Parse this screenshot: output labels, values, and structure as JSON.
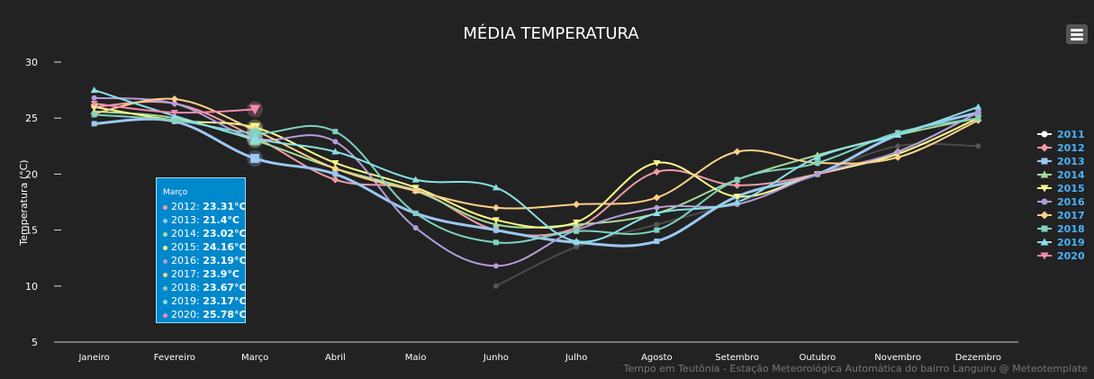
{
  "chart_data": {
    "type": "line",
    "title": "MÉDIA TEMPERATURA",
    "ylabel": "Temperatura (°C)",
    "ylim": [
      5,
      30
    ],
    "yticks": [
      5,
      10,
      15,
      20,
      25,
      30
    ],
    "categories": [
      "Janeiro",
      "Fevereiro",
      "Março",
      "Abril",
      "Maio",
      "Junho",
      "Julho",
      "Agosto",
      "Setembro",
      "Outubro",
      "Novembro",
      "Dezembro"
    ],
    "legend_position": "right",
    "series": [
      {
        "name": "2011",
        "color": "#555555",
        "marker": "circle",
        "values": [
          null,
          null,
          null,
          null,
          null,
          10.0,
          13.5,
          15.5,
          17.5,
          20.0,
          22.5,
          22.5
        ]
      },
      {
        "name": "2012",
        "color": "#f19aa6",
        "marker": "diamond",
        "values": [
          26.0,
          26.3,
          23.31,
          19.5,
          18.6,
          15.0,
          15.2,
          20.2,
          19.0,
          20.0,
          22.0,
          25.5
        ]
      },
      {
        "name": "2013",
        "color": "#9cc8f2",
        "marker": "square",
        "values": [
          24.5,
          24.7,
          21.4,
          20.0,
          16.5,
          15.0,
          13.9,
          14.0,
          18.0,
          20.0,
          23.5,
          25.5
        ]
      },
      {
        "name": "2014",
        "color": "#a8db9a",
        "marker": "triangle",
        "values": [
          25.6,
          25.0,
          23.02,
          20.5,
          18.5,
          15.5,
          15.5,
          16.5,
          19.5,
          21.7,
          23.5,
          25.0
        ]
      },
      {
        "name": "2015",
        "color": "#fdfd8a",
        "marker": "triangle-down",
        "values": [
          26.0,
          24.8,
          24.16,
          21.0,
          18.8,
          15.9,
          15.7,
          21.0,
          18.0,
          20.0,
          21.8,
          25.0
        ]
      },
      {
        "name": "2016",
        "color": "#b39ddb",
        "marker": "circle",
        "values": [
          26.8,
          26.3,
          23.19,
          22.9,
          15.2,
          11.8,
          15.0,
          17.0,
          17.3,
          20.0,
          22.0,
          25.5
        ]
      },
      {
        "name": "2017",
        "color": "#fdd08a",
        "marker": "diamond",
        "values": [
          25.4,
          26.7,
          23.9,
          20.5,
          18.5,
          17.0,
          17.3,
          17.9,
          22.0,
          21.0,
          21.5,
          24.8
        ]
      },
      {
        "name": "2018",
        "color": "#7fd1c0",
        "marker": "square",
        "values": [
          25.3,
          24.8,
          23.67,
          23.8,
          16.5,
          13.9,
          14.9,
          15.0,
          19.5,
          21.0,
          23.7,
          25.0
        ]
      },
      {
        "name": "2019",
        "color": "#8ae0e8",
        "marker": "triangle",
        "values": [
          27.5,
          25.2,
          23.17,
          22.0,
          19.5,
          18.8,
          14.0,
          16.5,
          17.5,
          21.5,
          23.5,
          26.0
        ]
      },
      {
        "name": "2020",
        "color": "#f28bb0",
        "marker": "triangle-down",
        "values": [
          26.3,
          25.5,
          25.78,
          null,
          null,
          null,
          null,
          null,
          null,
          null,
          null,
          null
        ]
      }
    ],
    "tooltip": {
      "title": "Março",
      "rows": [
        {
          "label": "2012: ",
          "value": "23.31°C",
          "color": "#f19aa6"
        },
        {
          "label": "2013: ",
          "value": "21.4°C",
          "color": "#9cc8f2"
        },
        {
          "label": "2014: ",
          "value": "23.02°C",
          "color": "#a8db9a"
        },
        {
          "label": "2015: ",
          "value": "24.16°C",
          "color": "#fdfd8a"
        },
        {
          "label": "2016: ",
          "value": "23.19°C",
          "color": "#b39ddb"
        },
        {
          "label": "2017: ",
          "value": "23.9°C",
          "color": "#fdd08a"
        },
        {
          "label": "2018: ",
          "value": "23.67°C",
          "color": "#7fd1c0"
        },
        {
          "label": "2019: ",
          "value": "23.17°C",
          "color": "#8ae0e8"
        },
        {
          "label": "2020: ",
          "value": "25.78°C",
          "color": "#f28bb0"
        }
      ]
    },
    "credits": "Tempo em Teutônia - Estação Meteorológica Automática do bairro Languiru @ Meteotemplate"
  }
}
